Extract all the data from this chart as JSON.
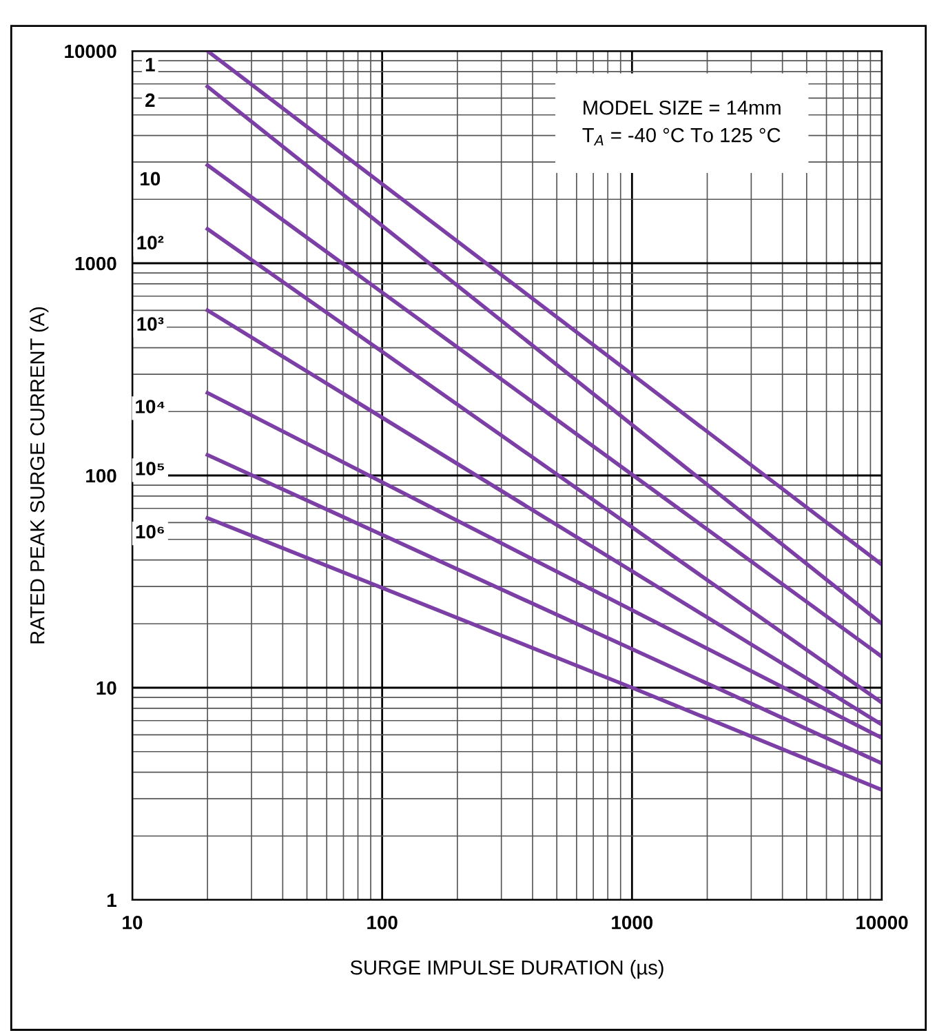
{
  "chart_data": {
    "type": "line",
    "log": "xy",
    "xlabel": "SURGE IMPULSE DURATION (µs)",
    "ylabel": "RATED PEAK SURGE CURRENT (A)",
    "xlim": [
      10,
      10000
    ],
    "ylim": [
      1,
      10000
    ],
    "xticks": [
      10,
      100,
      1000,
      10000
    ],
    "yticks": [
      1,
      10,
      100,
      1000,
      10000
    ],
    "grid": true,
    "legend": false,
    "annotations": [
      "MODEL SIZE = 14mm",
      "T$_{A}$ = -40 °C To 125 °C"
    ],
    "series": [
      {
        "name": "1",
        "color": "#7b3fa6",
        "x": [
          20,
          10000
        ],
        "values": [
          10000,
          38
        ]
      },
      {
        "name": "2",
        "color": "#7b3fa6",
        "x": [
          20,
          10000
        ],
        "values": [
          6800,
          20
        ]
      },
      {
        "name": "10",
        "color": "#7b3fa6",
        "x": [
          20,
          10000
        ],
        "values": [
          2900,
          14
        ]
      },
      {
        "name": "10²",
        "color": "#7b3fa6",
        "x": [
          20,
          10000
        ],
        "values": [
          1450,
          8.5
        ]
      },
      {
        "name": "10³",
        "color": "#7b3fa6",
        "x": [
          20,
          10000
        ],
        "values": [
          600,
          6.7
        ]
      },
      {
        "name": "10⁴",
        "color": "#7b3fa6",
        "x": [
          20,
          10000
        ],
        "values": [
          245,
          5.8
        ]
      },
      {
        "name": "10⁵",
        "color": "#7b3fa6",
        "x": [
          20,
          10000
        ],
        "values": [
          125,
          4.4
        ]
      },
      {
        "name": "10⁶",
        "color": "#7b3fa6",
        "x": [
          20,
          1000,
          10000
        ],
        "values": [
          63,
          10,
          3.3
        ]
      }
    ]
  }
}
